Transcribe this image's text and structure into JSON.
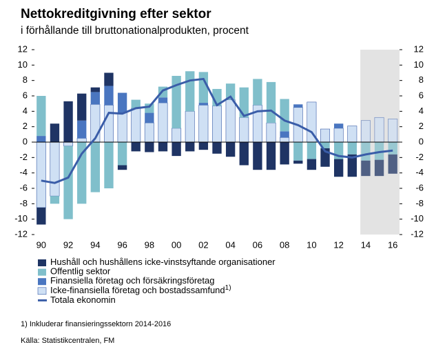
{
  "chart_data": {
    "type": "stacked_bar_line",
    "title": "Nettokreditgivning efter sektor",
    "subtitle": "i förhållande till bruttonationalprodukten, procent",
    "categories": [
      "90",
      null,
      "92",
      null,
      "94",
      null,
      "96",
      null,
      "98",
      null,
      "00",
      null,
      "02",
      null,
      "04",
      null,
      "06",
      null,
      "08",
      null,
      "10",
      null,
      "12",
      null,
      "14",
      null,
      "16"
    ],
    "ylim": [
      -12,
      12
    ],
    "yticks": [
      -12,
      -10,
      -8,
      -6,
      -4,
      -2,
      0,
      2,
      4,
      6,
      8,
      10,
      12
    ],
    "series": [
      {
        "name": "Hushåll och hushållens icke-vinstsyftande organisationer",
        "color": "#1f3464",
        "values": [
          -2.2,
          2.4,
          5.3,
          3.5,
          0.6,
          1.7,
          -0.6,
          -1.2,
          -1.3,
          -1.2,
          -1.8,
          -1.2,
          -1.0,
          -1.5,
          -1.9,
          -3.0,
          -3.6,
          -3.6,
          -2.9,
          -0.4,
          -1.4,
          -2.4,
          -2.3,
          -2.9,
          -2.0,
          -2.1,
          -2.5
        ]
      },
      {
        "name": "Offentlig sektor",
        "color": "#80bfcb",
        "values": [
          5.2,
          -1.0,
          -9.5,
          -8.0,
          -6.5,
          -6.0,
          -3.0,
          1.1,
          1.2,
          1.4,
          6.8,
          5.2,
          4.0,
          2.2,
          2.1,
          3.9,
          3.4,
          5.3,
          4.2,
          -2.4,
          -2.2,
          -0.8,
          -2.2,
          -1.6,
          -2.4,
          -2.3,
          -1.6
        ]
      },
      {
        "name": "Finansiella företag och försäkringsföretag",
        "color": "#4a76c0",
        "values": [
          0.8,
          0,
          0,
          2.3,
          1.6,
          2.5,
          2.6,
          0,
          1.3,
          0.7,
          0,
          0,
          0.3,
          0,
          0,
          0,
          0,
          0,
          0.8,
          0.4,
          0,
          0,
          0.6,
          0,
          0,
          0,
          0
        ]
      },
      {
        "name": "Icke-finansiella företag och bostadssamfund",
        "note_marker": "1)",
        "color": "#cfe0f4",
        "values": [
          -8.5,
          -7.0,
          -0.5,
          0.5,
          4.9,
          4.8,
          3.8,
          4.4,
          2.5,
          5.1,
          1.8,
          4.0,
          4.8,
          4.7,
          5.5,
          3.2,
          4.8,
          2.5,
          0.6,
          4.5,
          5.2,
          1.7,
          1.8,
          2.1,
          2.8,
          3.2,
          3.0
        ]
      }
    ],
    "line": {
      "name": "Totala ekonomin",
      "color": "#3a5da8",
      "values": [
        -5.0,
        -5.3,
        -4.6,
        -1.5,
        0.5,
        3.8,
        3.7,
        4.4,
        4.6,
        6.7,
        7.4,
        8.0,
        8.2,
        4.8,
        5.9,
        3.4,
        4.0,
        4.1,
        2.8,
        2.2,
        1.3,
        -1.2,
        -1.8,
        -2.0,
        -1.6,
        -1.3,
        -1.1
      ]
    },
    "footnote": "1) Inkluderar finansieringssektorn 2014-2016",
    "source": "Källa: Statistikcentralen, FM"
  }
}
